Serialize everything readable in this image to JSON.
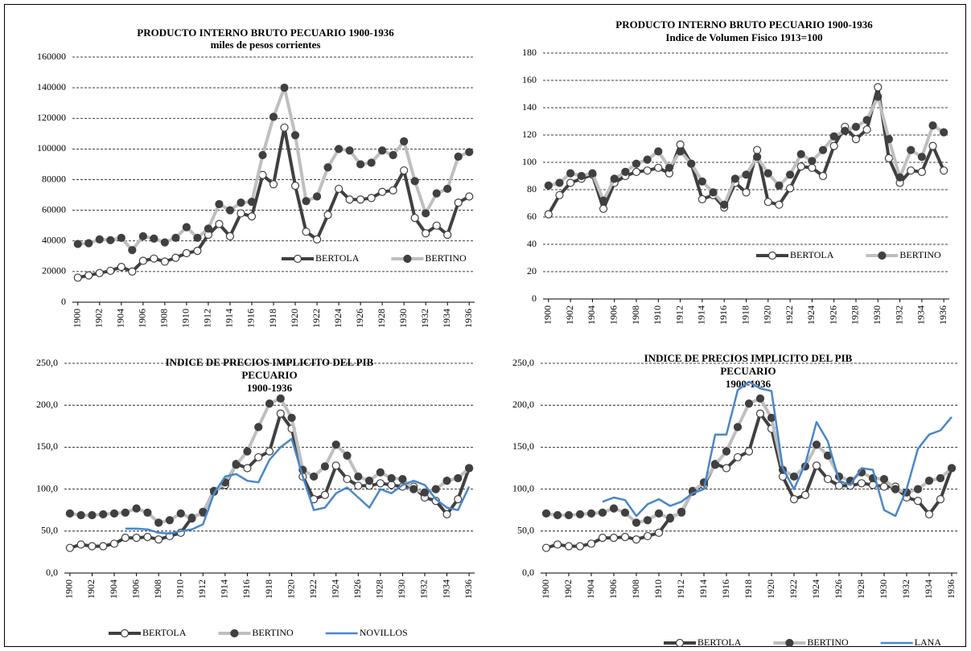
{
  "chart_data": [
    {
      "type": "line",
      "title": [
        "PRODUCTO  INTERNO  BRUTO  PECUARIO  1900-1936",
        "miles de pesos corrientes"
      ],
      "x": [
        1900,
        1901,
        1902,
        1903,
        1904,
        1905,
        1906,
        1907,
        1908,
        1909,
        1910,
        1911,
        1912,
        1913,
        1914,
        1915,
        1916,
        1917,
        1918,
        1919,
        1920,
        1921,
        1922,
        1923,
        1924,
        1925,
        1926,
        1927,
        1928,
        1929,
        1930,
        1931,
        1932,
        1933,
        1934,
        1935,
        1936
      ],
      "xlim": [
        1899.5,
        1936.5
      ],
      "xticks": [
        1900,
        1902,
        1904,
        1906,
        1908,
        1910,
        1912,
        1914,
        1916,
        1918,
        1920,
        1922,
        1924,
        1926,
        1928,
        1930,
        1932,
        1934,
        1936
      ],
      "ylim": [
        0,
        160000
      ],
      "yticks": [
        0,
        20000,
        40000,
        60000,
        80000,
        100000,
        120000,
        140000,
        160000
      ],
      "grid": true,
      "legend": "lower right",
      "series": [
        {
          "name": "BERTOLA",
          "color": "#404040",
          "marker": "hollow",
          "values": [
            16000,
            17500,
            19000,
            20500,
            23000,
            20000,
            27000,
            28500,
            26500,
            29000,
            32000,
            33500,
            44000,
            51000,
            43000,
            58000,
            56000,
            83000,
            77000,
            114000,
            76000,
            46000,
            41000,
            57000,
            74000,
            67000,
            67000,
            68000,
            72000,
            73000,
            86000,
            55000,
            45000,
            50000,
            44000,
            65000,
            69000
          ]
        },
        {
          "name": "BERTINO",
          "color": "#bfbfbf",
          "marker": "filled",
          "values": [
            38000,
            38500,
            41000,
            40500,
            42000,
            34000,
            43000,
            41500,
            39000,
            42000,
            49000,
            42000,
            48000,
            64000,
            60000,
            65000,
            65500,
            96000,
            121000,
            140000,
            109000,
            66000,
            69000,
            88000,
            100000,
            99000,
            90000,
            91000,
            99000,
            96000,
            105000,
            79000,
            58000,
            71000,
            74000,
            95000,
            98000
          ]
        }
      ]
    },
    {
      "type": "line",
      "title": [
        "PRODUCTO  INTERNO  BRUTO PECUARIO  1900-1936",
        "Indice de Volumen Fisico 1913=100"
      ],
      "x": [
        1900,
        1901,
        1902,
        1903,
        1904,
        1905,
        1906,
        1907,
        1908,
        1909,
        1910,
        1911,
        1912,
        1913,
        1914,
        1915,
        1916,
        1917,
        1918,
        1919,
        1920,
        1921,
        1922,
        1923,
        1924,
        1925,
        1926,
        1927,
        1928,
        1929,
        1930,
        1931,
        1932,
        1933,
        1934,
        1935,
        1936
      ],
      "xlim": [
        1899.5,
        1936.5
      ],
      "xticks": [
        1900,
        1902,
        1904,
        1906,
        1908,
        1910,
        1912,
        1914,
        1916,
        1918,
        1920,
        1922,
        1924,
        1926,
        1928,
        1930,
        1932,
        1934,
        1936
      ],
      "ylim": [
        0,
        180
      ],
      "yticks": [
        0,
        20,
        40,
        60,
        80,
        100,
        120,
        140,
        160,
        180
      ],
      "grid": true,
      "legend": "lower right",
      "series": [
        {
          "name": "BERTOLA",
          "color": "#404040",
          "marker": "hollow",
          "values": [
            62,
            76,
            85,
            88,
            91,
            66,
            85,
            90,
            93,
            94,
            96,
            92,
            113,
            99,
            73,
            76,
            67,
            85,
            78,
            109,
            71,
            69,
            81,
            97,
            96,
            90,
            112,
            126,
            117,
            124,
            155,
            103,
            85,
            94,
            93,
            112,
            94
          ]
        },
        {
          "name": "BERTINO",
          "color": "#bfbfbf",
          "marker": "filled",
          "values": [
            83,
            85,
            92,
            90,
            92,
            72,
            88,
            93,
            99,
            102,
            108,
            96,
            108,
            99,
            86,
            78,
            69,
            88,
            91,
            104,
            92,
            83,
            91,
            106,
            101,
            109,
            119,
            123,
            126,
            131,
            148,
            117,
            89,
            109,
            104,
            127,
            122
          ]
        }
      ]
    },
    {
      "type": "line",
      "title": [
        "INDICE  DE PRECIOS  IMPLICITO   DEL  PIB",
        "PECUARIO",
        "1900-1936"
      ],
      "x": [
        1900,
        1901,
        1902,
        1903,
        1904,
        1905,
        1906,
        1907,
        1908,
        1909,
        1910,
        1911,
        1912,
        1913,
        1914,
        1915,
        1916,
        1917,
        1918,
        1919,
        1920,
        1921,
        1922,
        1923,
        1924,
        1925,
        1926,
        1927,
        1928,
        1929,
        1930,
        1931,
        1932,
        1933,
        1934,
        1935,
        1936
      ],
      "xlim": [
        1899.5,
        1936.5
      ],
      "xticks": [
        1900,
        1902,
        1904,
        1906,
        1908,
        1910,
        1912,
        1914,
        1916,
        1918,
        1920,
        1922,
        1924,
        1926,
        1928,
        1930,
        1932,
        1934,
        1936
      ],
      "ylim": [
        0,
        250
      ],
      "yticks": [
        {
          "value": 0,
          "label": "0,0"
        },
        {
          "value": 50,
          "label": "50,0"
        },
        {
          "value": 100,
          "label": "100,0"
        },
        {
          "value": 150,
          "label": "150,0"
        },
        {
          "value": 200,
          "label": "200,0"
        },
        {
          "value": 250,
          "label": "250,0"
        }
      ],
      "grid": true,
      "legend": "bottom left",
      "series": [
        {
          "name": "BERTOLA",
          "color": "#404040",
          "marker": "hollow",
          "values": [
            30,
            34,
            32,
            32,
            35,
            42,
            42,
            43,
            40,
            44,
            48,
            66,
            72,
            98,
            105,
            130,
            125,
            138,
            145,
            190,
            172,
            115,
            88,
            93,
            128,
            112,
            104,
            104,
            107,
            105,
            103,
            103,
            90,
            86,
            70,
            88,
            125
          ]
        },
        {
          "name": "BERTINO",
          "color": "#bfbfbf",
          "marker": "filled",
          "values": [
            71,
            69,
            69,
            70,
            71,
            72,
            77,
            72,
            60,
            63,
            71,
            65,
            73,
            97,
            108,
            129,
            145,
            174,
            202,
            208,
            185,
            123,
            115,
            127,
            153,
            140,
            115,
            110,
            120,
            113,
            112,
            100,
            96,
            100,
            110,
            113,
            125
          ]
        },
        {
          "name": "NOVILLOS",
          "color": "#4a86c8",
          "marker": "none",
          "values": [
            null,
            null,
            null,
            null,
            null,
            53,
            53,
            52,
            48,
            47,
            50,
            52,
            58,
            95,
            115,
            118,
            110,
            108,
            135,
            150,
            160,
            115,
            75,
            78,
            95,
            102,
            90,
            78,
            100,
            95,
            105,
            110,
            105,
            88,
            78,
            75,
            103
          ]
        }
      ]
    },
    {
      "type": "line",
      "title": [
        "INDICE  DE PRECIOS  IMPLICITO   DEL  PIB",
        "PECUARIO",
        "1900-1936"
      ],
      "x": [
        1900,
        1901,
        1902,
        1903,
        1904,
        1905,
        1906,
        1907,
        1908,
        1909,
        1910,
        1911,
        1912,
        1913,
        1914,
        1915,
        1916,
        1917,
        1918,
        1919,
        1920,
        1921,
        1922,
        1923,
        1924,
        1925,
        1926,
        1927,
        1928,
        1929,
        1930,
        1931,
        1932,
        1933,
        1934,
        1935,
        1936
      ],
      "xlim": [
        1899.5,
        1936.5
      ],
      "xticks": [
        1900,
        1902,
        1904,
        1906,
        1908,
        1910,
        1912,
        1914,
        1916,
        1918,
        1920,
        1922,
        1924,
        1926,
        1928,
        1930,
        1932,
        1934,
        1936
      ],
      "ylim": [
        0,
        250
      ],
      "yticks": [
        {
          "value": 0,
          "label": "0,0"
        },
        {
          "value": 50,
          "label": "50,0"
        },
        {
          "value": 100,
          "label": "100,0"
        },
        {
          "value": 150,
          "label": "150,0"
        },
        {
          "value": 200,
          "label": "200,0"
        },
        {
          "value": 250,
          "label": "250,0"
        }
      ],
      "grid": true,
      "legend": "bottom right",
      "series": [
        {
          "name": "BERTOLA",
          "color": "#404040",
          "marker": "hollow",
          "values": [
            30,
            34,
            32,
            32,
            35,
            42,
            42,
            43,
            40,
            44,
            48,
            66,
            72,
            98,
            105,
            130,
            125,
            138,
            145,
            190,
            172,
            115,
            88,
            93,
            128,
            112,
            104,
            104,
            107,
            105,
            103,
            103,
            90,
            86,
            70,
            88,
            125
          ]
        },
        {
          "name": "BERTINO",
          "color": "#bfbfbf",
          "marker": "filled",
          "values": [
            71,
            69,
            69,
            70,
            71,
            72,
            77,
            72,
            60,
            63,
            71,
            65,
            73,
            97,
            108,
            129,
            145,
            174,
            202,
            208,
            185,
            123,
            115,
            127,
            153,
            140,
            115,
            110,
            120,
            113,
            112,
            100,
            96,
            100,
            110,
            113,
            125
          ]
        },
        {
          "name": "LANA",
          "color": "#4a86c8",
          "marker": "none",
          "values": [
            null,
            null,
            null,
            null,
            null,
            85,
            90,
            87,
            68,
            82,
            88,
            80,
            85,
            95,
            100,
            165,
            165,
            218,
            228,
            220,
            217,
            125,
            100,
            130,
            180,
            157,
            110,
            105,
            125,
            123,
            75,
            68,
            100,
            148,
            165,
            170,
            186
          ]
        }
      ]
    }
  ]
}
